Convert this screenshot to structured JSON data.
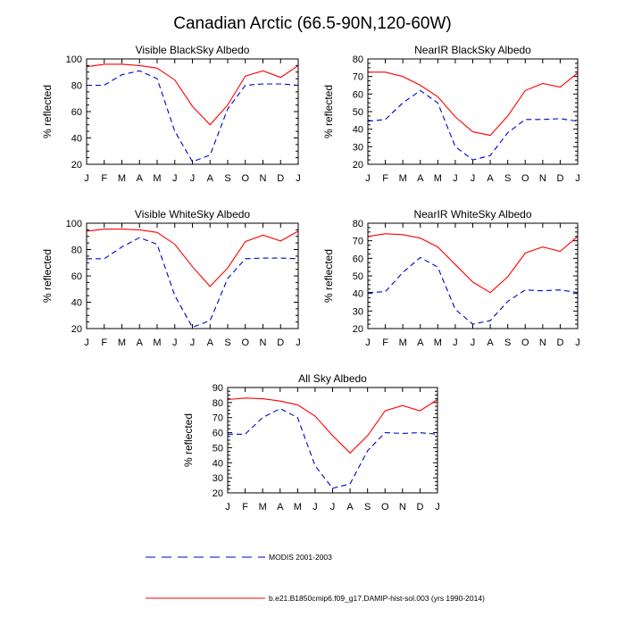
{
  "figure": {
    "title": "Canadian Arctic (66.5-90N,120-60W)",
    "legend": [
      {
        "label": "MODIS 2001-2003",
        "color": "#0000cc",
        "dash": "dashed"
      },
      {
        "label": "b.e21.B1850cmip6.f09_g17.DAMIP-hist-sol.003 (yrs 1990-2014)",
        "color": "#ff0000",
        "dash": "solid"
      }
    ]
  },
  "chart_data": [
    {
      "type": "line",
      "title": "Visible BlackSky Albedo",
      "ylabel": "% reflected",
      "categories": [
        "J",
        "F",
        "M",
        "A",
        "M",
        "J",
        "J",
        "A",
        "S",
        "O",
        "N",
        "D",
        "J"
      ],
      "ylim": [
        20,
        100
      ],
      "yticks": [
        20,
        40,
        60,
        80,
        100
      ],
      "series": [
        {
          "values": [
            80,
            80,
            88,
            91,
            85,
            45,
            22,
            27,
            62,
            80,
            81,
            81,
            80
          ]
        },
        {
          "values": [
            94,
            96,
            96,
            95,
            93,
            84,
            64,
            50,
            65,
            87,
            91,
            86,
            95
          ]
        }
      ]
    },
    {
      "type": "line",
      "title": "NearIR BlackSky Albedo",
      "ylabel": "% reflected",
      "categories": [
        "J",
        "F",
        "M",
        "A",
        "M",
        "J",
        "J",
        "A",
        "S",
        "O",
        "N",
        "D",
        "J"
      ],
      "ylim": [
        20,
        80
      ],
      "yticks": [
        20,
        30,
        40,
        50,
        60,
        70,
        80
      ],
      "series": [
        {
          "values": [
            44.5,
            45.5,
            55,
            62,
            55,
            30,
            22.5,
            25,
            38,
            45.5,
            45.5,
            46,
            44.5
          ]
        },
        {
          "values": [
            72.5,
            72.5,
            70,
            65,
            58.5,
            47,
            38.5,
            36.5,
            47.5,
            62,
            66,
            64,
            72
          ]
        }
      ]
    },
    {
      "type": "line",
      "title": "Visible WhiteSky Albedo",
      "ylabel": "% reflected",
      "categories": [
        "J",
        "F",
        "M",
        "A",
        "M",
        "J",
        "J",
        "A",
        "S",
        "O",
        "N",
        "D",
        "J"
      ],
      "ylim": [
        20,
        100
      ],
      "yticks": [
        20,
        40,
        60,
        80,
        100
      ],
      "series": [
        {
          "values": [
            73,
            73,
            82,
            89,
            84,
            45,
            21,
            26,
            58,
            73,
            73.5,
            73.5,
            73
          ]
        },
        {
          "values": [
            94,
            95.5,
            95.5,
            95,
            93,
            84,
            67,
            52,
            66,
            86,
            91,
            86.5,
            94
          ]
        }
      ]
    },
    {
      "type": "line",
      "title": "NearIR WhiteSky Albedo",
      "ylabel": "% reflected",
      "categories": [
        "J",
        "F",
        "M",
        "A",
        "M",
        "J",
        "J",
        "A",
        "S",
        "O",
        "N",
        "D",
        "J"
      ],
      "ylim": [
        20,
        80
      ],
      "yticks": [
        20,
        30,
        40,
        50,
        60,
        70,
        80
      ],
      "series": [
        {
          "values": [
            40.5,
            41,
            52,
            60.5,
            55,
            31,
            22.5,
            24.5,
            35.5,
            42,
            41.5,
            42,
            40.5
          ]
        },
        {
          "values": [
            72.5,
            74,
            73.5,
            71.5,
            66.5,
            56.5,
            46.5,
            40.5,
            49.5,
            63,
            66.5,
            64,
            72.5
          ]
        }
      ]
    },
    {
      "type": "line",
      "title": "All Sky Albedo",
      "ylabel": "% reflected",
      "categories": [
        "J",
        "F",
        "M",
        "A",
        "M",
        "J",
        "J",
        "A",
        "S",
        "O",
        "N",
        "D",
        "J"
      ],
      "ylim": [
        20,
        90
      ],
      "yticks": [
        20,
        30,
        40,
        50,
        60,
        70,
        80,
        90
      ],
      "series": [
        {
          "values": [
            59,
            59,
            70,
            76,
            70,
            38,
            23,
            26,
            48,
            60,
            59.5,
            60,
            59
          ]
        },
        {
          "values": [
            82,
            83,
            82.5,
            81,
            78.5,
            71,
            58,
            46.5,
            58,
            74.5,
            78,
            74.5,
            82
          ]
        }
      ]
    }
  ]
}
